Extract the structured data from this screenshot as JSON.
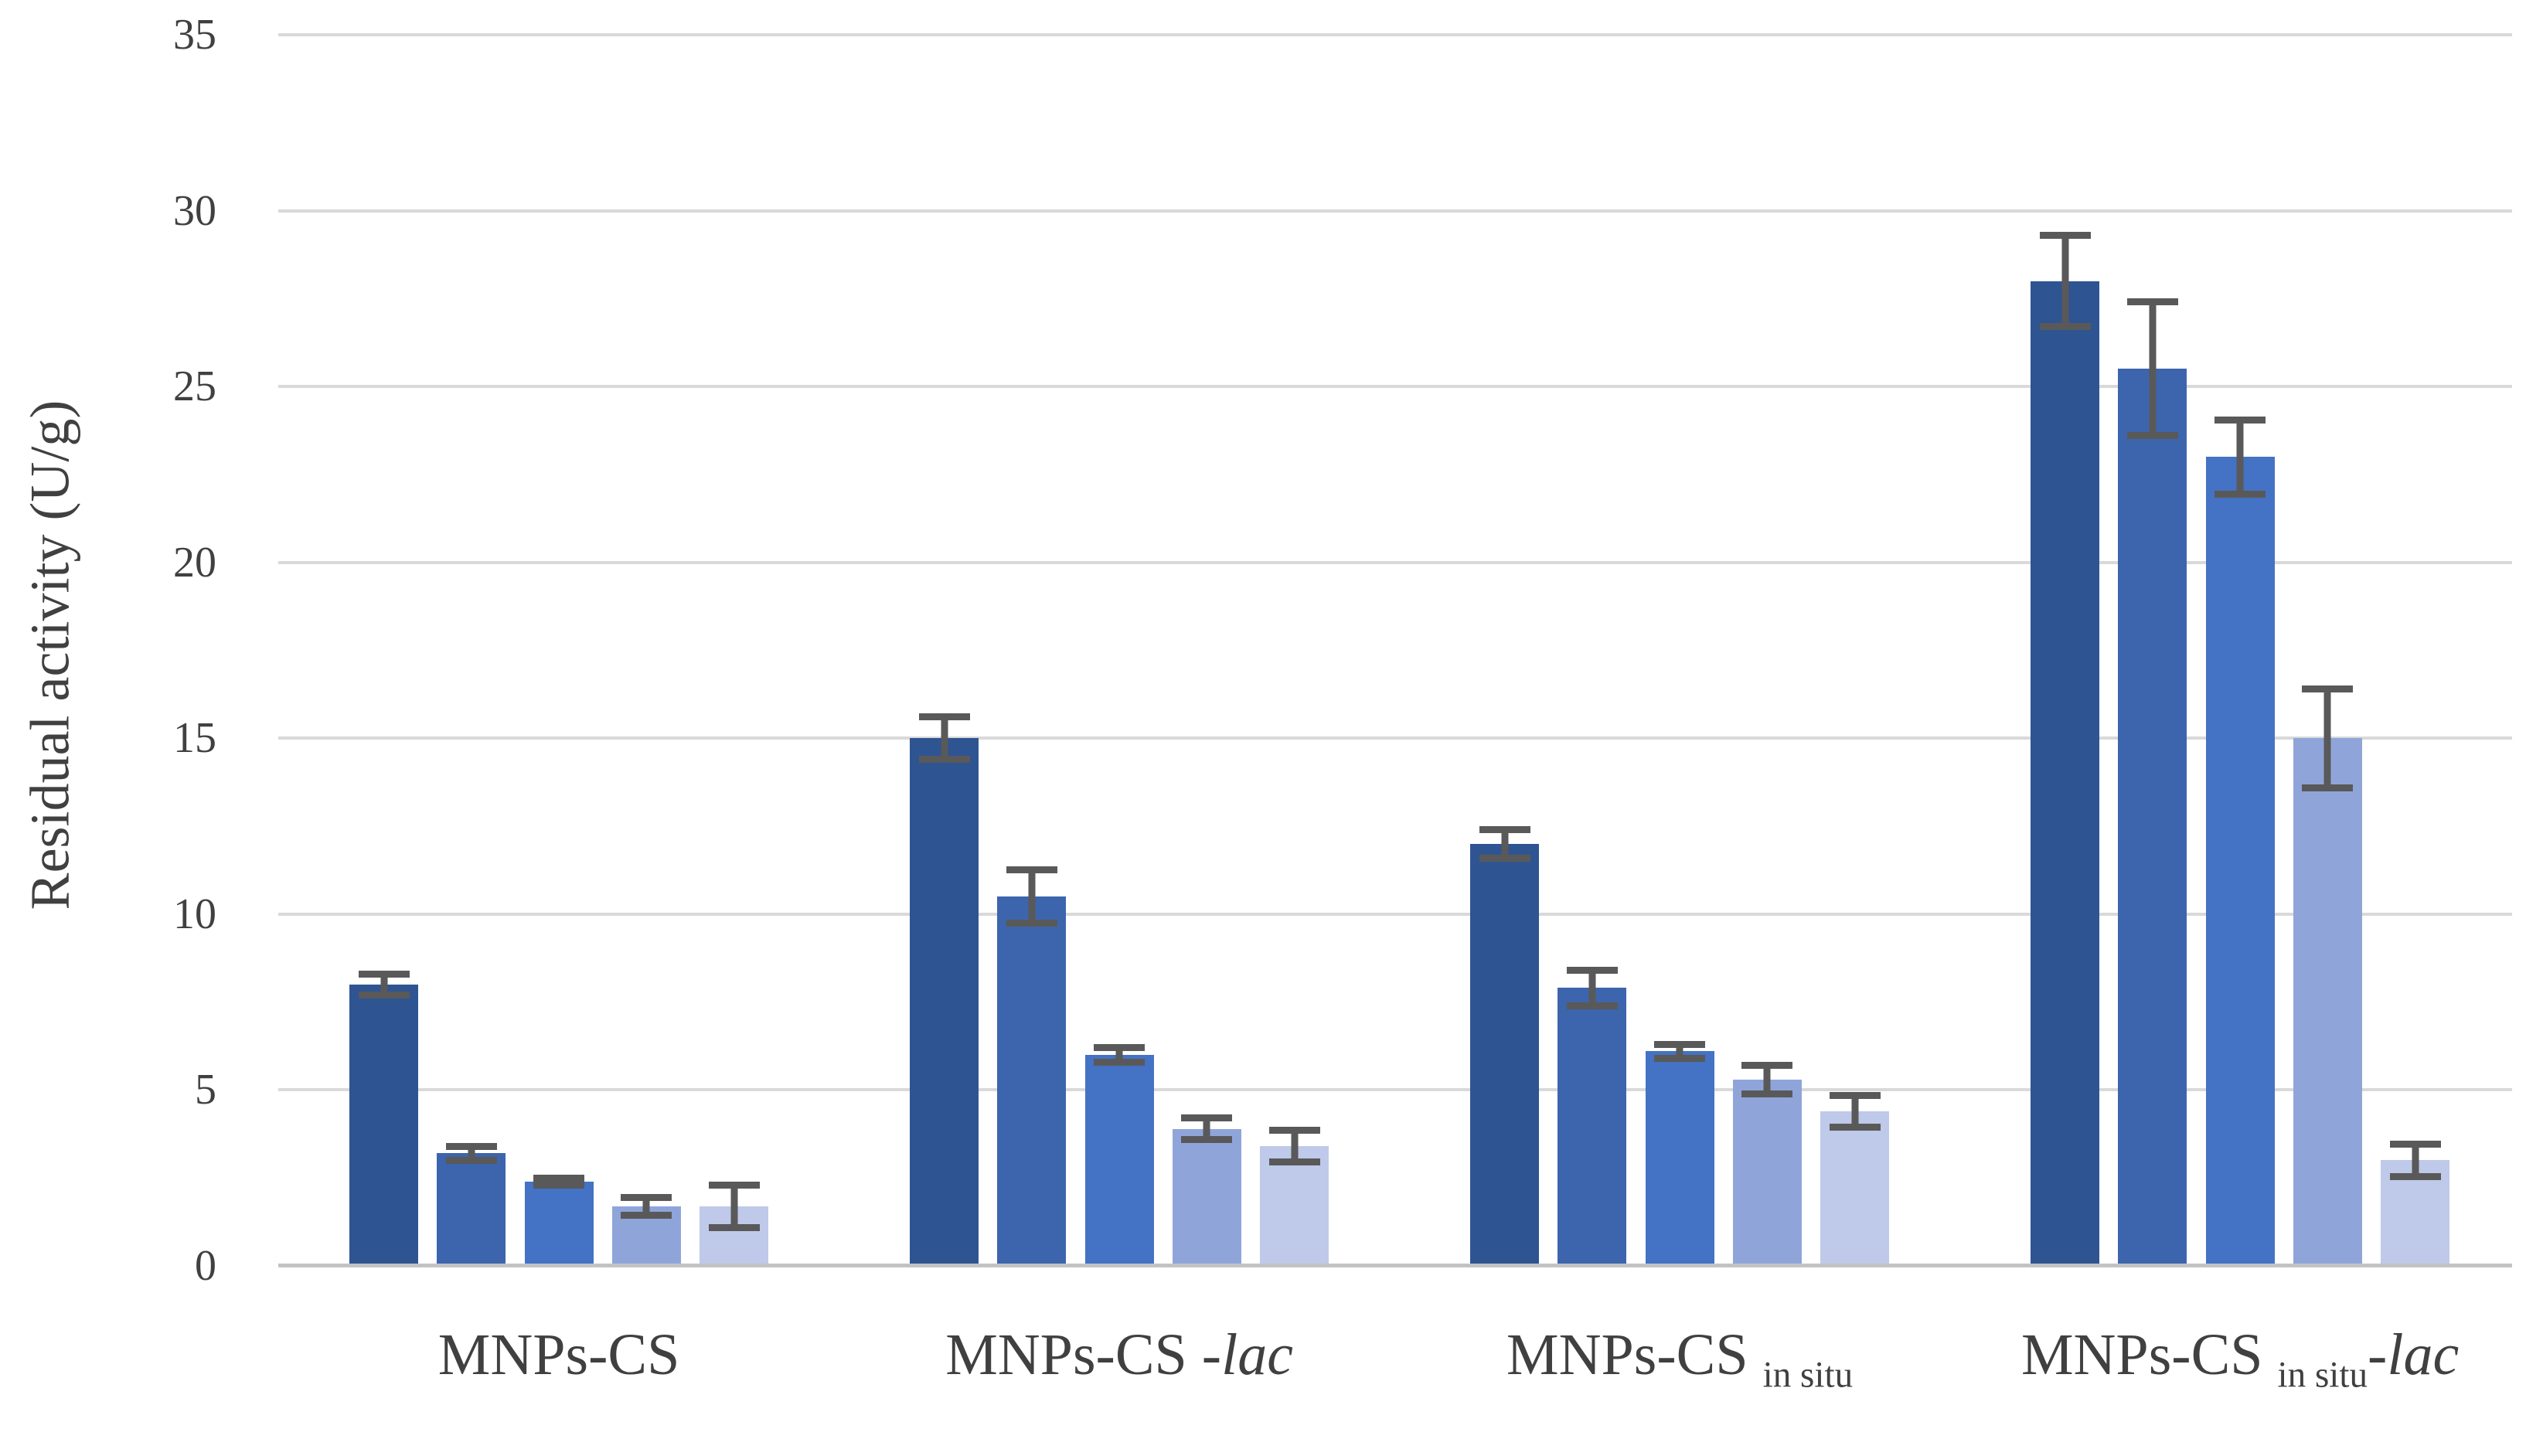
{
  "chart_data": {
    "type": "bar",
    "title": "",
    "xlabel": "",
    "ylabel": "Residual activity (U/g)",
    "ylim": [
      0,
      35
    ],
    "yticks": [
      0,
      5,
      10,
      15,
      20,
      25,
      30,
      35
    ],
    "grid": "horizontal-only",
    "legend": "none",
    "categories": [
      "MNPs-CS",
      "MNPs-CS -lac",
      "MNPs-CS in situ",
      "MNPs-CS in situ-lac"
    ],
    "category_label_parts": [
      [
        {
          "text": "MNPs-CS",
          "style": "normal"
        }
      ],
      [
        {
          "text": "MNPs-CS -",
          "style": "normal"
        },
        {
          "text": "lac",
          "style": "italic"
        }
      ],
      [
        {
          "text": "MNPs-CS ",
          "style": "normal"
        },
        {
          "text": "in situ",
          "style": "subscript"
        }
      ],
      [
        {
          "text": "MNPs-CS ",
          "style": "normal"
        },
        {
          "text": "in situ",
          "style": "subscript"
        },
        {
          "text": "-",
          "style": "normal"
        },
        {
          "text": "lac",
          "style": "italic"
        }
      ]
    ],
    "series": [
      {
        "name": "bar-1-darkest-blue",
        "color": "#2F5492",
        "values": [
          8.0,
          15.0,
          12.0,
          28.0
        ],
        "errors": [
          0.4,
          0.7,
          0.5,
          1.4
        ]
      },
      {
        "name": "bar-2-dark-blue",
        "color": "#3D65AD",
        "values": [
          3.2,
          10.5,
          7.9,
          25.5
        ],
        "errors": [
          0.3,
          0.85,
          0.6,
          2.0
        ]
      },
      {
        "name": "bar-3-medium-blue",
        "color": "#4472C4",
        "values": [
          2.4,
          6.0,
          6.1,
          23.0
        ],
        "errors": [
          0.2,
          0.3,
          0.3,
          1.15
        ]
      },
      {
        "name": "bar-4-light-blue",
        "color": "#8FA5DA",
        "values": [
          1.7,
          3.9,
          5.3,
          15.0
        ],
        "errors": [
          0.35,
          0.4,
          0.5,
          1.5
        ]
      },
      {
        "name": "bar-5-lightest-blue",
        "color": "#BFC9E9",
        "values": [
          1.7,
          3.4,
          4.4,
          3.0
        ],
        "errors": [
          0.7,
          0.55,
          0.55,
          0.55
        ]
      }
    ],
    "colors": {
      "error_bar": "#595959",
      "gridline": "#D9D9D9",
      "axis_line": "#C3C3C3",
      "text": "#404040",
      "background": "#FFFFFF"
    }
  }
}
